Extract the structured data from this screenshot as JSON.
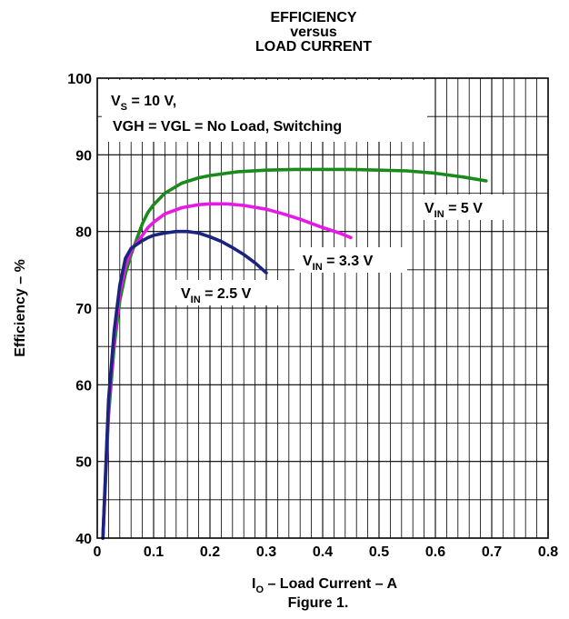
{
  "chart_data": {
    "type": "line",
    "title_lines": [
      "EFFICIENCY",
      "versus",
      "LOAD CURRENT"
    ],
    "xlabel": {
      "base": "I",
      "sub": "O",
      "rest": " – Load Current – A"
    },
    "ylabel": "Efficiency – %",
    "caption": "Figure 1.",
    "xlim": [
      0,
      0.8
    ],
    "ylim": [
      40,
      100
    ],
    "x_ticks": [
      "0",
      "0.1",
      "0.2",
      "0.3",
      "0.4",
      "0.5",
      "0.6",
      "0.7",
      "0.8"
    ],
    "y_ticks": [
      "40",
      "50",
      "60",
      "70",
      "80",
      "90",
      "100"
    ],
    "grid": true,
    "conditions": {
      "line1": {
        "base": "V",
        "sub": "S",
        "rest": " = 10 V,"
      },
      "line2": "VGH = VGL = No Load, Switching"
    },
    "series": [
      {
        "name": "VIN = 5 V",
        "label": {
          "base": "V",
          "sub": "IN",
          "rest": " = 5 V"
        },
        "color": "#1a8a1a",
        "x": [
          0.01,
          0.02,
          0.03,
          0.04,
          0.05,
          0.06,
          0.07,
          0.08,
          0.09,
          0.1,
          0.12,
          0.15,
          0.18,
          0.2,
          0.25,
          0.3,
          0.35,
          0.4,
          0.45,
          0.5,
          0.55,
          0.6,
          0.65,
          0.69
        ],
        "y": [
          40,
          56,
          65,
          71,
          74.5,
          77,
          79,
          81,
          82.5,
          83.5,
          85,
          86.3,
          87,
          87.3,
          87.8,
          88,
          88.1,
          88.1,
          88.1,
          88,
          87.9,
          87.6,
          87.1,
          86.6
        ]
      },
      {
        "name": "VIN = 3.3 V",
        "label": {
          "base": "V",
          "sub": "IN",
          "rest": " = 3.3 V"
        },
        "color": "#e619e6",
        "x": [
          0.01,
          0.02,
          0.03,
          0.04,
          0.05,
          0.06,
          0.07,
          0.08,
          0.09,
          0.1,
          0.12,
          0.15,
          0.18,
          0.2,
          0.23,
          0.26,
          0.3,
          0.33,
          0.36,
          0.4,
          0.43,
          0.45
        ],
        "y": [
          40,
          57,
          66,
          72,
          75.5,
          77.5,
          78.5,
          79.5,
          80.5,
          81.2,
          82.3,
          83.1,
          83.5,
          83.6,
          83.6,
          83.4,
          82.9,
          82.3,
          81.6,
          80.5,
          79.8,
          79.2
        ]
      },
      {
        "name": "VIN = 2.5 V",
        "label": {
          "base": "V",
          "sub": "IN",
          "rest": " = 2.5 V"
        },
        "color": "#1a237e",
        "x": [
          0.01,
          0.02,
          0.03,
          0.04,
          0.05,
          0.06,
          0.07,
          0.08,
          0.09,
          0.1,
          0.12,
          0.14,
          0.16,
          0.18,
          0.2,
          0.22,
          0.24,
          0.26,
          0.28,
          0.3
        ],
        "y": [
          40,
          58,
          67,
          73,
          76.5,
          77.8,
          78.3,
          78.8,
          79.2,
          79.5,
          79.8,
          80,
          80,
          79.8,
          79.3,
          78.7,
          77.9,
          77,
          75.9,
          74.6
        ]
      }
    ]
  }
}
